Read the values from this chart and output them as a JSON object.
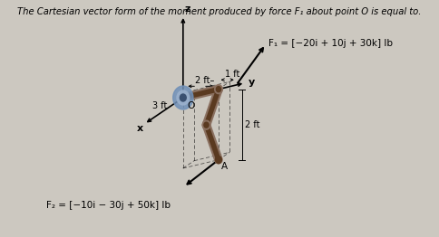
{
  "title": "The Cartesian vector form of the moment produced by force F₁ about point O is equal to.",
  "bg_color": "#ccc8c0",
  "text_color": "#000000",
  "title_fontsize": 7.2,
  "f1_label": "F₁ = [−20i + 10j + 30k] lb",
  "f2_label": "F₂ = [−10i − 30j + 50k] lb",
  "dim_2ft": "2 ft–",
  "dim_1ft": "1 ft",
  "dim_3ft": "3 ft",
  "dim_2ft_b": "2 ft",
  "label_x": "x",
  "label_y": "y",
  "label_z": "z",
  "label_O": "O",
  "label_A": "A",
  "arm_color": "#8a7060",
  "arm_dark": "#5a3a20",
  "circle_color": "#7090b8",
  "circle_dark": "#3a5070"
}
